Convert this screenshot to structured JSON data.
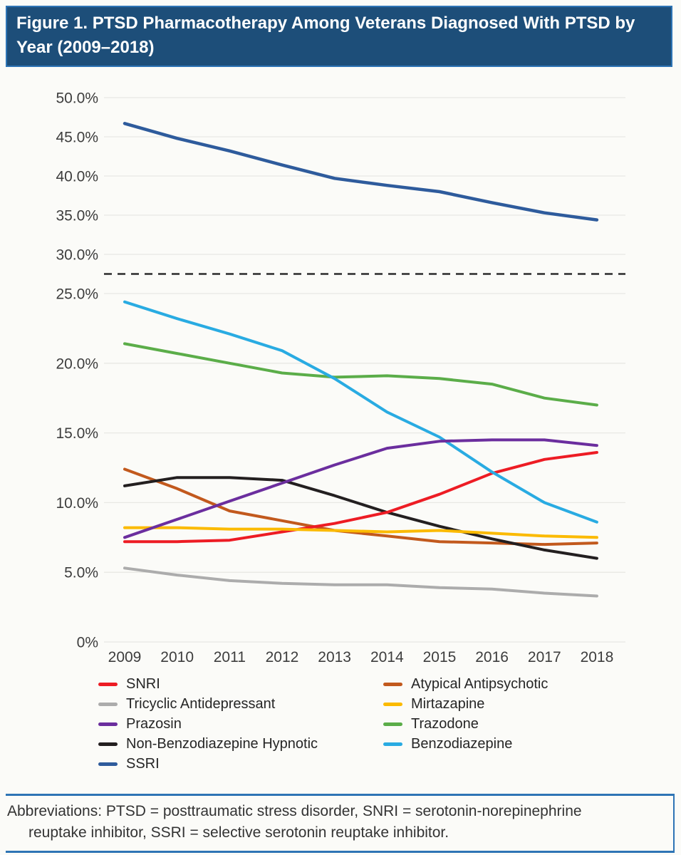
{
  "figure": {
    "title": "Figure 1. PTSD Pharmacotherapy Among Veterans Diagnosed With PTSD by Year (2009–2018)",
    "abbreviations": {
      "line1": "Abbreviations: PTSD = posttraumatic stress disorder, SNRI = serotonin-norepinephrine",
      "line2": "reuptake inhibitor, SSRI = selective serotonin reuptake inhibitor."
    }
  },
  "colors": {
    "banner_bg": "#1d4e79",
    "banner_border": "#2e74b5",
    "page_bg": "#fbfbf8",
    "gridline": "#e8e8e4",
    "axis_text": "#3d3d3d",
    "break_line": "#2b2b2b",
    "footer_rule": "#2e74b5"
  },
  "chart_data": {
    "type": "line",
    "categories": [
      "2009",
      "2010",
      "2011",
      "2012",
      "2013",
      "2014",
      "2015",
      "2016",
      "2017",
      "2018"
    ],
    "xlabel": "",
    "ylabel": "",
    "grid": true,
    "y_axis": {
      "units": "percent",
      "broken_axis": true,
      "lower_range": [
        0,
        25
      ],
      "upper_range": [
        30,
        50
      ],
      "ticks": [
        {
          "value": 0,
          "label": "0%"
        },
        {
          "value": 5,
          "label": "5.0%"
        },
        {
          "value": 10,
          "label": "10.0%"
        },
        {
          "value": 15,
          "label": "15.0%"
        },
        {
          "value": 20,
          "label": "20.0%"
        },
        {
          "value": 25,
          "label": "25.0%"
        },
        {
          "value": 30,
          "label": "30.0%"
        },
        {
          "value": 35,
          "label": "35.0%"
        },
        {
          "value": 40,
          "label": "40.0%"
        },
        {
          "value": 45,
          "label": "45.0%"
        },
        {
          "value": 50,
          "label": "50.0%"
        }
      ],
      "break_marker": {
        "style": "dashed",
        "between": [
          25,
          30
        ]
      }
    },
    "series": [
      {
        "name": "Tricyclic Antidepressant",
        "color": "#acacac",
        "values": [
          5.3,
          4.8,
          4.4,
          4.2,
          4.1,
          4.1,
          3.9,
          3.8,
          3.5,
          3.3
        ]
      },
      {
        "name": "Atypical Antipsychotic",
        "color": "#c2591d",
        "values": [
          12.4,
          11.0,
          9.4,
          8.7,
          8.0,
          7.6,
          7.2,
          7.1,
          7.0,
          7.1
        ]
      },
      {
        "name": "Non-Benzodiazepine Hypnotic",
        "color": "#231f20",
        "values": [
          11.2,
          11.8,
          11.8,
          11.6,
          10.5,
          9.3,
          8.3,
          7.4,
          6.6,
          6.0
        ]
      },
      {
        "name": "SNRI",
        "color": "#ed1c24",
        "values": [
          7.2,
          7.2,
          7.3,
          7.9,
          8.5,
          9.3,
          10.6,
          12.1,
          13.1,
          13.6
        ]
      },
      {
        "name": "Mirtazapine",
        "color": "#fbba00",
        "values": [
          8.2,
          8.2,
          8.1,
          8.1,
          8.0,
          7.9,
          8.0,
          7.8,
          7.6,
          7.5
        ]
      },
      {
        "name": "Trazodone",
        "color": "#5bad49",
        "values": [
          21.4,
          20.7,
          20.0,
          19.3,
          19.0,
          19.1,
          18.9,
          18.5,
          17.5,
          17.0
        ]
      },
      {
        "name": "Benzodiazepine",
        "color": "#29abe2",
        "values": [
          24.4,
          23.2,
          22.1,
          20.9,
          18.9,
          16.5,
          14.7,
          12.2,
          10.0,
          8.6
        ]
      },
      {
        "name": "Prazosin",
        "color": "#6b2e9e",
        "values": [
          7.5,
          8.8,
          10.1,
          11.4,
          12.7,
          13.9,
          14.4,
          14.5,
          14.5,
          14.1
        ]
      },
      {
        "name": "SSRI",
        "color": "#2e5b9c",
        "values": [
          46.7,
          44.8,
          43.2,
          41.4,
          39.7,
          38.8,
          38.0,
          36.6,
          35.3,
          34.4
        ]
      }
    ],
    "legend": {
      "position": "bottom",
      "left_column": [
        "SNRI",
        "Tricyclic Antidepressant",
        "Prazosin",
        "Non-Benzodiazepine Hypnotic",
        "SSRI"
      ],
      "right_column": [
        "Atypical Antipsychotic",
        "Mirtazapine",
        "Trazodone",
        "Benzodiazepine"
      ]
    }
  }
}
